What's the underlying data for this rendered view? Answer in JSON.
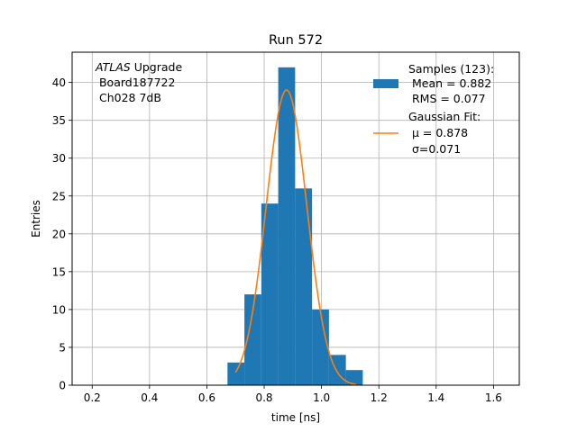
{
  "chart_data": {
    "type": "bar",
    "title": "Run 572",
    "xlabel": "time [ns]",
    "ylabel": "Entries",
    "xlim": [
      0.13,
      1.69
    ],
    "ylim": [
      0,
      44
    ],
    "grid": true,
    "legend_position": "top-right",
    "xticks": [
      0.2,
      0.4,
      0.6,
      0.8,
      1.0,
      1.2,
      1.4,
      1.6
    ],
    "xtick_labels": [
      "0.2",
      "0.4",
      "0.6",
      "0.8",
      "1.0",
      "1.2",
      "1.4",
      "1.6"
    ],
    "yticks": [
      0,
      5,
      10,
      15,
      20,
      25,
      30,
      35,
      40
    ],
    "ytick_labels": [
      "0",
      "5",
      "10",
      "15",
      "20",
      "25",
      "30",
      "35",
      "40"
    ],
    "annotation": {
      "line1_italic": "ATLAS",
      "line1_rest": " Upgrade",
      "line2": " Board187722",
      "line3": " Ch028 7dB"
    },
    "histogram": {
      "bin_edges": [
        0.672,
        0.731,
        0.79,
        0.849,
        0.908,
        0.967,
        1.026,
        1.085,
        1.144
      ],
      "counts": [
        3,
        12,
        24,
        42,
        26,
        10,
        4,
        2
      ],
      "color": "#1f77b4"
    },
    "fit_curve": {
      "x_min": 0.7,
      "x_max": 1.12,
      "mu": 0.878,
      "sigma": 0.071,
      "amplitude": 39,
      "color": "#ff7f0e"
    },
    "legend": {
      "samples_lines": [
        "Samples (123):",
        " Mean = 0.882",
        " RMS = 0.077"
      ],
      "fit_lines": [
        "Gaussian Fit:",
        " μ = 0.878",
        " σ=0.071"
      ]
    }
  }
}
